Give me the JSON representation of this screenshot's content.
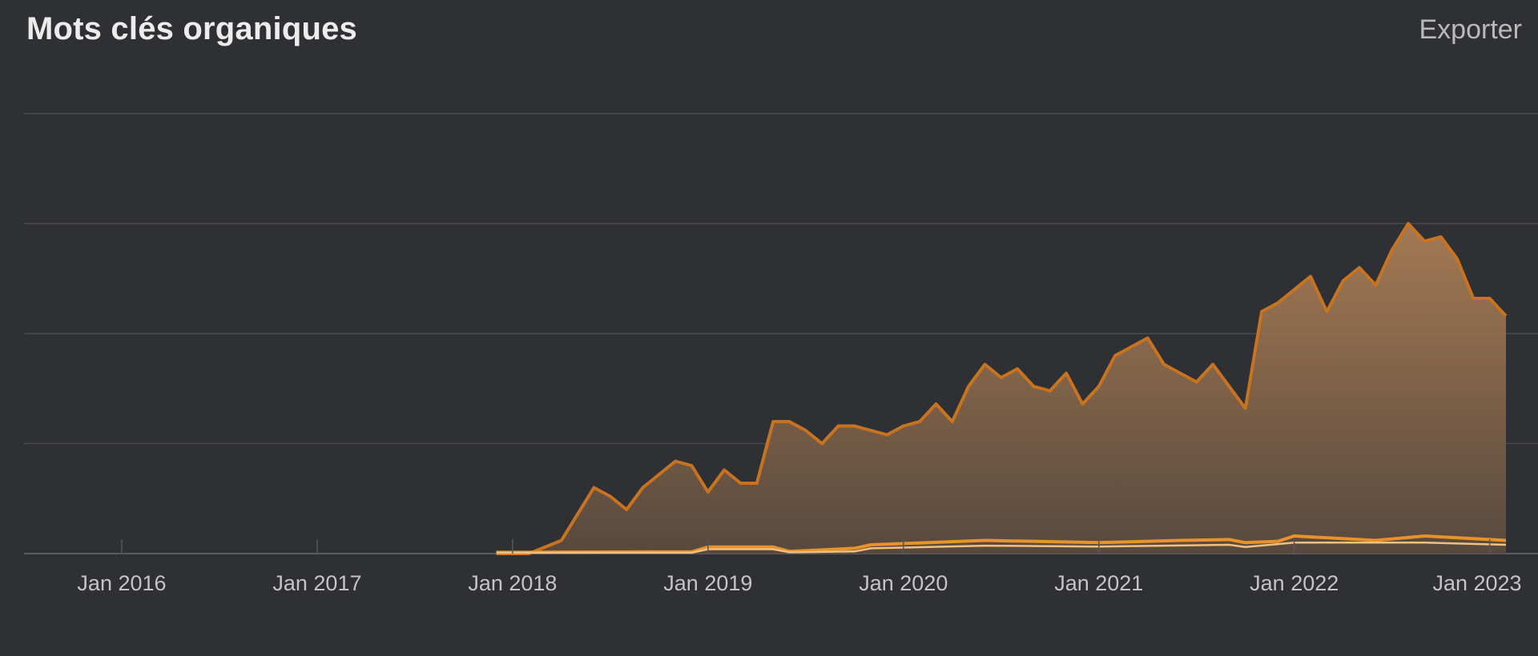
{
  "header": {
    "title": "Mots clés organiques",
    "export_label": "Exporter"
  },
  "colors": {
    "background": "#2f3033",
    "gridline": "#4a4b4f",
    "main_line": "#c8731f",
    "main_fill_top": "#a97d55",
    "main_fill_bottom": "#5a4a3e",
    "series2_line": "#e8922a",
    "series3_line": "#f0c080"
  },
  "chart_data": {
    "type": "area",
    "title": "Mots clés organiques",
    "xlabel": "",
    "ylabel": "",
    "x_ticks": [
      "Jan 2016",
      "Jan 2017",
      "Jan 2018",
      "Jan 2019",
      "Jan 2020",
      "Jan 2021",
      "Jan 2022",
      "Jan 2023"
    ],
    "xlim": [
      "2015-07",
      "2023-02"
    ],
    "ylim": [
      0,
      100
    ],
    "y_gridlines": [
      0,
      25,
      50,
      75,
      100
    ],
    "y_tick_labels_visible": false,
    "grid": true,
    "series": [
      {
        "points": [
          [
            "2017-12",
            0
          ],
          [
            "2018-02",
            0
          ],
          [
            "2018-04",
            3
          ],
          [
            "2018-06",
            15
          ],
          [
            "2018-07",
            13
          ],
          [
            "2018-08",
            10
          ],
          [
            "2018-09",
            15
          ],
          [
            "2018-11",
            21
          ],
          [
            "2018-12",
            20
          ],
          [
            "2019-01",
            14
          ],
          [
            "2019-02",
            19
          ],
          [
            "2019-03",
            16
          ],
          [
            "2019-04",
            16
          ],
          [
            "2019-05",
            30
          ],
          [
            "2019-06",
            30
          ],
          [
            "2019-07",
            28
          ],
          [
            "2019-08",
            25
          ],
          [
            "2019-09",
            29
          ],
          [
            "2019-10",
            29
          ],
          [
            "2019-11",
            28
          ],
          [
            "2019-12",
            27
          ],
          [
            "2020-01",
            29
          ],
          [
            "2020-02",
            30
          ],
          [
            "2020-03",
            34
          ],
          [
            "2020-04",
            30
          ],
          [
            "2020-05",
            38
          ],
          [
            "2020-06",
            43
          ],
          [
            "2020-07",
            40
          ],
          [
            "2020-08",
            42
          ],
          [
            "2020-09",
            38
          ],
          [
            "2020-10",
            37
          ],
          [
            "2020-11",
            41
          ],
          [
            "2020-12",
            34
          ],
          [
            "2021-01",
            38
          ],
          [
            "2021-02",
            45
          ],
          [
            "2021-03",
            47
          ],
          [
            "2021-04",
            49
          ],
          [
            "2021-05",
            43
          ],
          [
            "2021-06",
            41
          ],
          [
            "2021-07",
            39
          ],
          [
            "2021-08",
            43
          ],
          [
            "2021-09",
            38
          ],
          [
            "2021-10",
            33
          ],
          [
            "2021-11",
            55
          ],
          [
            "2021-12",
            57
          ],
          [
            "2022-01",
            60
          ],
          [
            "2022-02",
            63
          ],
          [
            "2022-03",
            55
          ],
          [
            "2022-04",
            62
          ],
          [
            "2022-05",
            65
          ],
          [
            "2022-06",
            61
          ],
          [
            "2022-07",
            69
          ],
          [
            "2022-08",
            75
          ],
          [
            "2022-09",
            71
          ],
          [
            "2022-10",
            72
          ],
          [
            "2022-11",
            67
          ],
          [
            "2022-12",
            58
          ],
          [
            "2023-01",
            58
          ],
          [
            "2023-02",
            54
          ]
        ]
      },
      {
        "points": [
          [
            "2017-12",
            0.3
          ],
          [
            "2018-12",
            0.4
          ],
          [
            "2019-01",
            1.5
          ],
          [
            "2019-05",
            1.5
          ],
          [
            "2019-06",
            0.5
          ],
          [
            "2019-10",
            1.2
          ],
          [
            "2019-11",
            2
          ],
          [
            "2020-06",
            3
          ],
          [
            "2021-01",
            2.5
          ],
          [
            "2021-06",
            3
          ],
          [
            "2021-09",
            3.2
          ],
          [
            "2021-10",
            2.5
          ],
          [
            "2021-12",
            2.8
          ],
          [
            "2022-01",
            4
          ],
          [
            "2022-06",
            3
          ],
          [
            "2022-09",
            4
          ],
          [
            "2023-02",
            3
          ]
        ]
      },
      {
        "points": [
          [
            "2017-12",
            0.2
          ],
          [
            "2018-12",
            0.2
          ],
          [
            "2019-01",
            1
          ],
          [
            "2019-05",
            1
          ],
          [
            "2019-06",
            0.3
          ],
          [
            "2019-10",
            0.5
          ],
          [
            "2019-11",
            1.2
          ],
          [
            "2020-06",
            1.8
          ],
          [
            "2021-01",
            1.6
          ],
          [
            "2021-09",
            2
          ],
          [
            "2021-10",
            1.5
          ],
          [
            "2022-01",
            2.5
          ],
          [
            "2022-09",
            2.5
          ],
          [
            "2023-02",
            2
          ]
        ]
      }
    ]
  }
}
